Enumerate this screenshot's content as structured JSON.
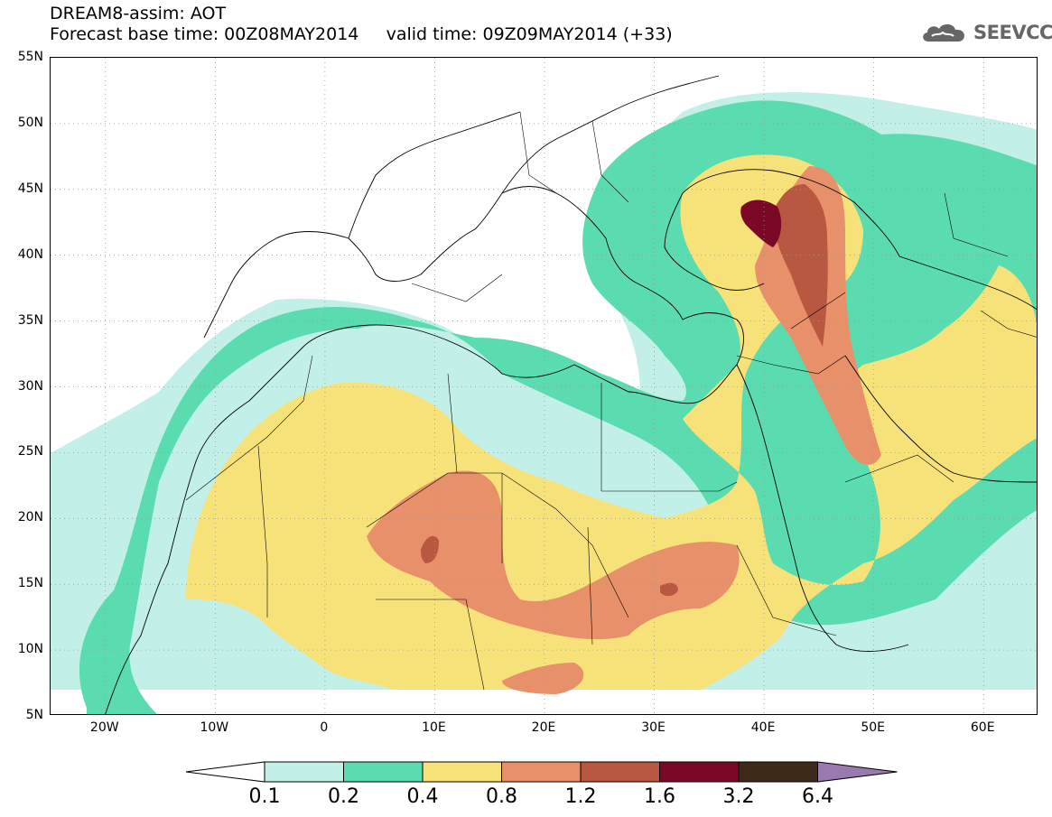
{
  "header": {
    "line1": "DREAM8-assim: AOT",
    "line2": "Forecast base time: 00Z08MAY2014     valid time: 09Z09MAY2014 (+33)"
  },
  "logo": {
    "text": "SEEVCCC",
    "icon": "cloud-icon"
  },
  "map": {
    "lat_labels": [
      "55N",
      "50N",
      "45N",
      "40N",
      "35N",
      "30N",
      "25N",
      "20N",
      "15N",
      "10N",
      "5N"
    ],
    "lon_labels": [
      "20W",
      "10W",
      "0",
      "10E",
      "20E",
      "30E",
      "40E",
      "50E",
      "60E"
    ],
    "lon_range": [
      -25,
      65
    ],
    "lat_range": [
      5,
      55
    ]
  },
  "colorbar": {
    "labels": [
      "0.1",
      "0.2",
      "0.4",
      "0.8",
      "1.2",
      "1.6",
      "3.2",
      "6.4"
    ],
    "colors": [
      "#ffffff",
      "#c2f0e8",
      "#5adbb0",
      "#f7e27a",
      "#e8906a",
      "#b85840",
      "#7a0826",
      "#3e2a18",
      "#9a78b0"
    ]
  }
}
